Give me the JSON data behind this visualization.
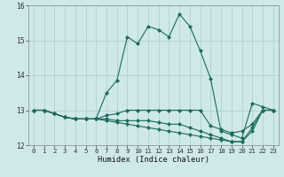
{
  "xlabel": "Humidex (Indice chaleur)",
  "xlim": [
    -0.5,
    23.5
  ],
  "ylim": [
    12,
    16
  ],
  "yticks": [
    12,
    13,
    14,
    15,
    16
  ],
  "xticks": [
    0,
    1,
    2,
    3,
    4,
    5,
    6,
    7,
    8,
    9,
    10,
    11,
    12,
    13,
    14,
    15,
    16,
    17,
    18,
    19,
    20,
    21,
    22,
    23
  ],
  "background_color": "#cfe8e8",
  "grid_color": "#aacece",
  "line_color": "#1a6b5e",
  "series": [
    [
      13.0,
      13.0,
      12.9,
      12.8,
      12.75,
      12.75,
      12.75,
      13.5,
      13.85,
      15.1,
      14.9,
      15.4,
      15.3,
      15.1,
      15.75,
      15.4,
      14.7,
      13.9,
      12.4,
      12.3,
      12.2,
      13.2,
      13.1,
      13.0
    ],
    [
      13.0,
      13.0,
      12.9,
      12.8,
      12.75,
      12.75,
      12.75,
      12.85,
      12.9,
      13.0,
      13.0,
      13.0,
      13.0,
      13.0,
      13.0,
      13.0,
      13.0,
      12.55,
      12.45,
      12.35,
      12.4,
      12.6,
      13.0,
      13.0
    ],
    [
      13.0,
      13.0,
      12.9,
      12.8,
      12.75,
      12.75,
      12.75,
      12.75,
      12.7,
      12.7,
      12.7,
      12.7,
      12.65,
      12.6,
      12.6,
      12.5,
      12.4,
      12.3,
      12.2,
      12.1,
      12.1,
      12.5,
      13.0,
      13.0
    ],
    [
      13.0,
      13.0,
      12.9,
      12.8,
      12.75,
      12.75,
      12.75,
      12.7,
      12.65,
      12.6,
      12.55,
      12.5,
      12.45,
      12.4,
      12.35,
      12.3,
      12.25,
      12.2,
      12.15,
      12.1,
      12.1,
      12.4,
      13.0,
      13.0
    ]
  ]
}
